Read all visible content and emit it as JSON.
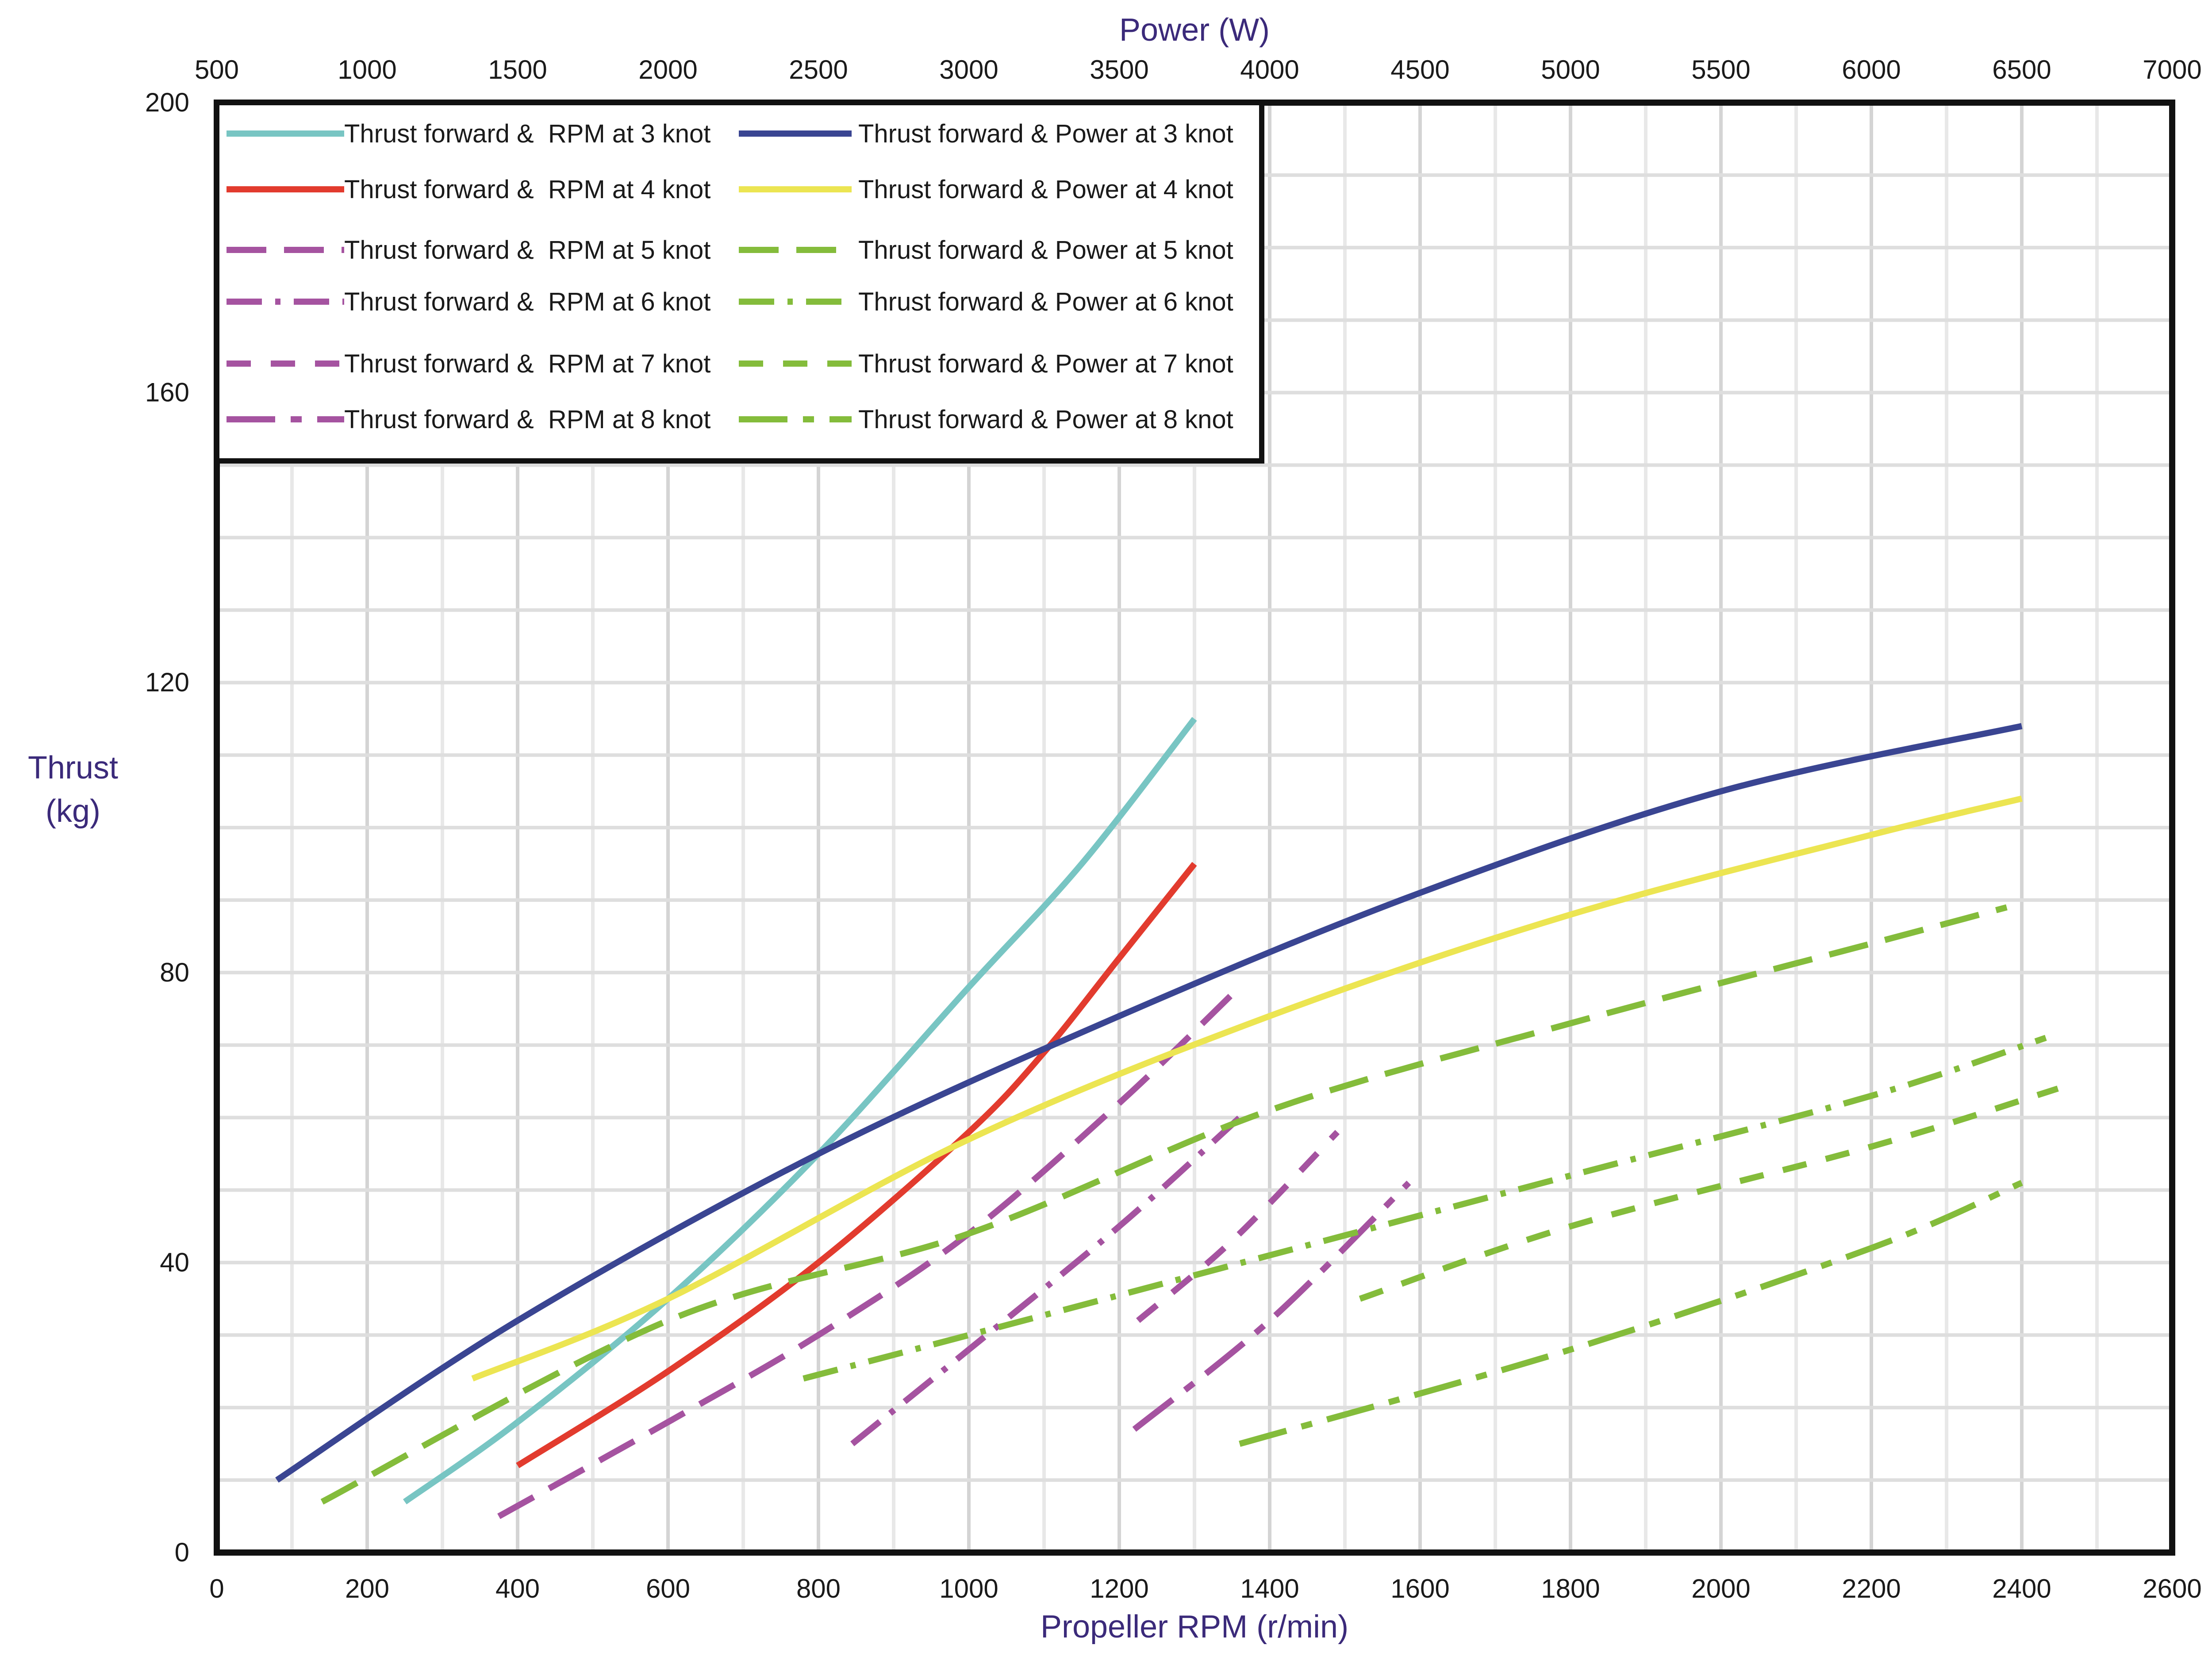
{
  "chart_data": {
    "type": "line",
    "title": "",
    "xlabel": "Propeller RPM (r/min)",
    "x2label": "Power (W)",
    "ylabel": [
      "Thrust",
      "(kg)"
    ],
    "xlim": [
      0,
      2600
    ],
    "x2lim": [
      500,
      7000
    ],
    "ylim": [
      0,
      200
    ],
    "xticks": [
      0,
      200,
      400,
      600,
      800,
      1000,
      1200,
      1400,
      1600,
      1800,
      2000,
      2200,
      2400,
      2600
    ],
    "x2ticks": [
      500,
      1000,
      1500,
      2000,
      2500,
      3000,
      3500,
      4000,
      4500,
      5000,
      5500,
      6000,
      6500,
      7000
    ],
    "yticks": [
      0,
      40,
      80,
      120,
      160,
      200
    ],
    "grid": true,
    "legend_position": "top-left",
    "colors": {
      "teal": "#78c5c3",
      "red": "#e23b2e",
      "purple": "#a553a0",
      "navy": "#3a4592",
      "yellow": "#ece552",
      "green": "#84bc3b",
      "axis_title": "#3b2a7a"
    },
    "series": [
      {
        "name": "Thrust forward &  RPM at 3 knot",
        "axis": "rpm",
        "color": "teal",
        "dash": "solid",
        "x": [
          250,
          400,
          600,
          800,
          1000,
          1150,
          1300
        ],
        "y": [
          7,
          18,
          35,
          55,
          78,
          95,
          115
        ]
      },
      {
        "name": "Thrust forward &  RPM at 4 knot",
        "axis": "rpm",
        "color": "red",
        "dash": "solid",
        "x": [
          400,
          600,
          800,
          1000,
          1100,
          1200,
          1300
        ],
        "y": [
          12,
          25,
          40,
          58,
          69,
          82,
          95
        ]
      },
      {
        "name": "Thrust forward &  RPM at 5 knot",
        "axis": "rpm",
        "color": "purple",
        "dash": "longdash",
        "x": [
          375,
          600,
          800,
          1000,
          1200,
          1350
        ],
        "y": [
          5,
          18,
          30,
          44,
          62,
          77
        ]
      },
      {
        "name": "Thrust forward &  RPM at 6 knot",
        "axis": "rpm",
        "color": "purple",
        "dash": "dashdot",
        "x": [
          845,
          1000,
          1200,
          1360
        ],
        "y": [
          15,
          28,
          45,
          60
        ]
      },
      {
        "name": "Thrust forward &  RPM at 7 knot",
        "axis": "rpm",
        "color": "purple",
        "dash": "dash",
        "x": [
          1225,
          1350,
          1490
        ],
        "y": [
          32,
          43,
          58
        ]
      },
      {
        "name": "Thrust forward &  RPM at 8 knot",
        "axis": "rpm",
        "color": "purple",
        "dash": "longdashdot",
        "x": [
          1220,
          1400,
          1585
        ],
        "y": [
          17,
          32,
          51
        ]
      },
      {
        "name": "Thrust forward & Power at 3 knot",
        "axis": "power",
        "color": "navy",
        "dash": "solid",
        "x": [
          700,
          1500,
          2500,
          3500,
          4500,
          5500,
          6500
        ],
        "y": [
          10,
          32,
          55,
          74,
          91,
          105,
          114
        ]
      },
      {
        "name": "Thrust forward & Power at 4 knot",
        "axis": "power",
        "color": "yellow",
        "dash": "solid",
        "x": [
          1350,
          2000,
          3000,
          4000,
          5000,
          6000,
          6500
        ],
        "y": [
          24,
          35,
          57,
          74,
          88,
          99,
          104
        ]
      },
      {
        "name": "Thrust forward & Power at 5 knot",
        "axis": "power",
        "color": "green",
        "dash": "longdash",
        "x": [
          850,
          2000,
          3000,
          4000,
          5000,
          6000,
          6450
        ],
        "y": [
          7,
          32,
          44,
          61,
          73,
          84,
          89
        ]
      },
      {
        "name": "Thrust forward & Power at 6 knot",
        "axis": "power",
        "color": "green",
        "dash": "dashdot",
        "x": [
          2450,
          3000,
          4000,
          5000,
          6000,
          6580
        ],
        "y": [
          24,
          30,
          41,
          52,
          63,
          71
        ]
      },
      {
        "name": "Thrust forward & Power at 7 knot",
        "axis": "power",
        "color": "green",
        "dash": "dash",
        "x": [
          4300,
          5000,
          6000,
          6620
        ],
        "y": [
          35,
          45,
          56,
          64
        ]
      },
      {
        "name": "Thrust forward & Power at 8 knot",
        "axis": "power",
        "color": "green",
        "dash": "longdashdot",
        "x": [
          3900,
          5000,
          6000,
          6500
        ],
        "y": [
          15,
          28,
          42,
          51
        ]
      }
    ]
  }
}
